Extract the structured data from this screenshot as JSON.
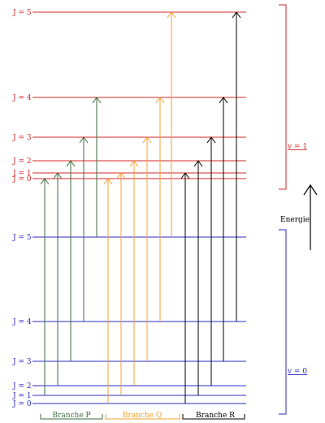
{
  "colors": {
    "upper": "#d62728",
    "lower": "#2a2ac8",
    "branch_p": "#3e6b3e",
    "branch_q": "#f0a030",
    "branch_r": "#000000",
    "energy": "#000000"
  },
  "upper_state": {
    "label": "v = 1",
    "levels": [
      {
        "j": 0,
        "label": "J = 0"
      },
      {
        "j": 1,
        "label": "J = 1"
      },
      {
        "j": 2,
        "label": "J = 2"
      },
      {
        "j": 3,
        "label": "J = 3"
      },
      {
        "j": 4,
        "label": "J = 4"
      },
      {
        "j": 5,
        "label": "J = 5"
      }
    ]
  },
  "lower_state": {
    "label": "v = 0",
    "levels": [
      {
        "j": 0,
        "label": "J = 0"
      },
      {
        "j": 1,
        "label": "J = 1"
      },
      {
        "j": 2,
        "label": "J = 2"
      },
      {
        "j": 3,
        "label": "J = 3"
      },
      {
        "j": 4,
        "label": "J = 4"
      },
      {
        "j": 5,
        "label": "J = 5"
      }
    ]
  },
  "energy_label": "Energie",
  "branches": [
    {
      "name": "Branche P",
      "color_key": "branch_p",
      "transitions": [
        [
          1,
          0
        ],
        [
          2,
          1
        ],
        [
          3,
          2
        ],
        [
          4,
          3
        ],
        [
          5,
          4
        ]
      ]
    },
    {
      "name": "Branche Q",
      "color_key": "branch_q",
      "transitions": [
        [
          0,
          0
        ],
        [
          1,
          1
        ],
        [
          2,
          2
        ],
        [
          3,
          3
        ],
        [
          4,
          4
        ],
        [
          5,
          5
        ]
      ]
    },
    {
      "name": "Branche R",
      "color_key": "branch_r",
      "transitions": [
        [
          0,
          1
        ],
        [
          1,
          2
        ],
        [
          2,
          3
        ],
        [
          3,
          4
        ],
        [
          4,
          5
        ]
      ]
    }
  ]
}
